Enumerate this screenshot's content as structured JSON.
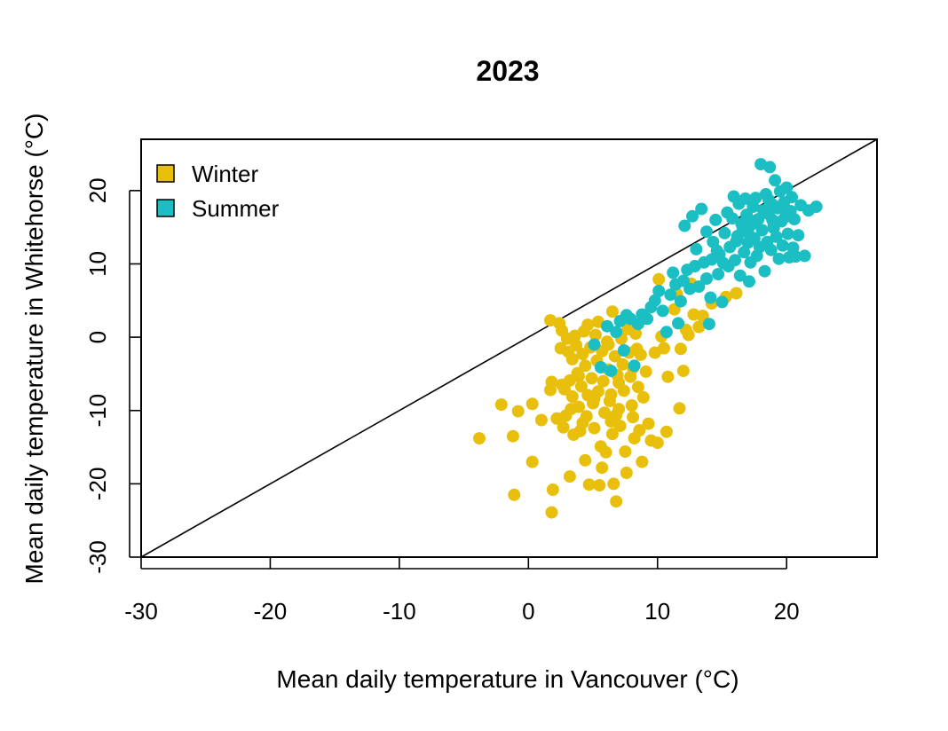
{
  "chart_data": {
    "type": "scatter",
    "title": "2023",
    "xlabel": "Mean daily temperature in Vancouver (°C)",
    "ylabel": "Mean daily temperature in Whitehorse (°C)",
    "xlim": [
      -30,
      27
    ],
    "ylim": [
      -30,
      27
    ],
    "xticks": [
      -30,
      -20,
      -10,
      0,
      10,
      20
    ],
    "yticks": [
      -30,
      -20,
      -10,
      0,
      10,
      20
    ],
    "grid": false,
    "legend_position": "top-left",
    "reference_line": {
      "type": "identity",
      "color": "#000000"
    },
    "series": [
      {
        "name": "Winter",
        "color": "#E8BF0A",
        "points": [
          [
            -3.8,
            -13.8
          ],
          [
            -2.1,
            -9.2
          ],
          [
            -1.2,
            -13.5
          ],
          [
            -1.1,
            -21.5
          ],
          [
            -0.8,
            -10.1
          ],
          [
            0.3,
            -9.1
          ],
          [
            0.3,
            -17.0
          ],
          [
            1.0,
            -11.3
          ],
          [
            1.7,
            2.3
          ],
          [
            1.8,
            -23.9
          ],
          [
            1.9,
            -20.8
          ],
          [
            1.8,
            -6.1
          ],
          [
            1.7,
            -7.2
          ],
          [
            2.2,
            -11.1
          ],
          [
            2.4,
            1.9
          ],
          [
            2.5,
            -1.5
          ],
          [
            2.6,
            -6.5
          ],
          [
            2.7,
            -12.3
          ],
          [
            2.8,
            -7.1
          ],
          [
            2.9,
            -10.7
          ],
          [
            3.0,
            -0.2
          ],
          [
            3.1,
            -2.0
          ],
          [
            3.2,
            -5.9
          ],
          [
            3.2,
            -19.0
          ],
          [
            3.4,
            -3.0
          ],
          [
            3.4,
            -8.1
          ],
          [
            3.5,
            -13.3
          ],
          [
            3.6,
            0.2
          ],
          [
            3.7,
            -1.1
          ],
          [
            3.8,
            -4.9
          ],
          [
            3.9,
            -9.5
          ],
          [
            4.0,
            -12.8
          ],
          [
            4.1,
            -6.7
          ],
          [
            4.2,
            -2.3
          ],
          [
            4.3,
            0.8
          ],
          [
            4.4,
            -3.9
          ],
          [
            4.5,
            -10.8
          ],
          [
            4.6,
            -7.9
          ],
          [
            4.6,
            1.7
          ],
          [
            4.7,
            -20.1
          ],
          [
            4.8,
            -1.4
          ],
          [
            4.9,
            -5.6
          ],
          [
            5.0,
            -9.0
          ],
          [
            5.1,
            -12.4
          ],
          [
            5.2,
            0.3
          ],
          [
            5.3,
            -3.2
          ],
          [
            5.4,
            -7.4
          ],
          [
            5.5,
            -20.2
          ],
          [
            5.6,
            -14.9
          ],
          [
            5.7,
            -1.9
          ],
          [
            5.8,
            -6.0
          ],
          [
            5.9,
            -10.3
          ],
          [
            6.0,
            -15.7
          ],
          [
            6.1,
            -0.6
          ],
          [
            6.2,
            -4.4
          ],
          [
            6.3,
            -8.7
          ],
          [
            6.4,
            -11.5
          ],
          [
            6.5,
            -13.2
          ],
          [
            6.5,
            3.5
          ],
          [
            6.6,
            -20.0
          ],
          [
            6.7,
            -2.6
          ],
          [
            6.8,
            -22.4
          ],
          [
            6.9,
            -5.2
          ],
          [
            7.0,
            -9.8
          ],
          [
            7.1,
            -12.1
          ],
          [
            7.2,
            -0.2
          ],
          [
            7.3,
            -3.7
          ],
          [
            7.4,
            -7.3
          ],
          [
            7.5,
            -15.6
          ],
          [
            7.6,
            -18.5
          ],
          [
            7.7,
            1.1
          ],
          [
            7.8,
            -2.1
          ],
          [
            7.9,
            -5.4
          ],
          [
            8.0,
            -9.3
          ],
          [
            8.1,
            -10.9
          ],
          [
            8.2,
            -13.8
          ],
          [
            8.3,
            0.5
          ],
          [
            8.4,
            -1.6
          ],
          [
            8.5,
            -6.8
          ],
          [
            8.6,
            -12.7
          ],
          [
            8.7,
            -2.4
          ],
          [
            8.8,
            -17.0
          ],
          [
            8.9,
            -8.2
          ],
          [
            9.1,
            -4.7
          ],
          [
            9.3,
            -11.8
          ],
          [
            9.5,
            -14.1
          ],
          [
            9.8,
            -2.1
          ],
          [
            10.0,
            -14.4
          ],
          [
            10.1,
            7.9
          ],
          [
            10.3,
            0.1
          ],
          [
            10.5,
            -1.5
          ],
          [
            10.7,
            -12.9
          ],
          [
            10.8,
            -5.4
          ],
          [
            11.3,
            3.8
          ],
          [
            11.5,
            5.9
          ],
          [
            11.7,
            -9.7
          ],
          [
            11.8,
            -1.6
          ],
          [
            12.0,
            -4.6
          ],
          [
            12.2,
            1.0
          ],
          [
            12.4,
            0.3
          ],
          [
            12.6,
            7.3
          ],
          [
            12.8,
            3.1
          ],
          [
            13.2,
            1.4
          ],
          [
            13.5,
            2.9
          ],
          [
            14.2,
            4.6
          ],
          [
            15.3,
            5.5
          ],
          [
            16.1,
            6.0
          ],
          [
            6.2,
            -1.0
          ],
          [
            5.1,
            -8.4
          ],
          [
            4.4,
            -16.8
          ],
          [
            3.9,
            -5.3
          ],
          [
            7.0,
            -6.2
          ],
          [
            5.7,
            -17.8
          ],
          [
            6.8,
            -10.6
          ],
          [
            4.2,
            -11.7
          ],
          [
            2.6,
            0.9
          ],
          [
            3.3,
            -9.8
          ],
          [
            8.1,
            -4.2
          ],
          [
            5.4,
            2.1
          ],
          [
            6.4,
            -7.8
          ]
        ]
      },
      {
        "name": "Summer",
        "color": "#1BBFC3",
        "points": [
          [
            5.1,
            -1.0
          ],
          [
            5.6,
            -4.1
          ],
          [
            6.1,
            1.5
          ],
          [
            6.4,
            -4.6
          ],
          [
            6.8,
            0.7
          ],
          [
            7.1,
            2.2
          ],
          [
            7.4,
            -1.8
          ],
          [
            7.6,
            3.0
          ],
          [
            7.9,
            2.5
          ],
          [
            8.2,
            -3.9
          ],
          [
            8.5,
            1.8
          ],
          [
            8.8,
            3.1
          ],
          [
            9.2,
            2.5
          ],
          [
            9.5,
            4.1
          ],
          [
            9.8,
            5.0
          ],
          [
            10.1,
            6.3
          ],
          [
            10.4,
            3.6
          ],
          [
            10.7,
            0.7
          ],
          [
            11.0,
            5.8
          ],
          [
            11.2,
            8.8
          ],
          [
            11.4,
            7.2
          ],
          [
            11.6,
            1.9
          ],
          [
            11.8,
            4.9
          ],
          [
            12.0,
            7.7
          ],
          [
            12.1,
            15.2
          ],
          [
            12.3,
            9.2
          ],
          [
            12.5,
            6.6
          ],
          [
            12.7,
            16.5
          ],
          [
            12.9,
            9.7
          ],
          [
            13.0,
            12.0
          ],
          [
            13.2,
            6.9
          ],
          [
            13.4,
            17.5
          ],
          [
            13.6,
            10.2
          ],
          [
            13.8,
            14.4
          ],
          [
            14.0,
            1.8
          ],
          [
            14.1,
            5.4
          ],
          [
            14.2,
            10.6
          ],
          [
            14.3,
            13.0
          ],
          [
            14.5,
            16.0
          ],
          [
            14.7,
            8.6
          ],
          [
            14.8,
            11.3
          ],
          [
            15.0,
            4.8
          ],
          [
            15.2,
            14.2
          ],
          [
            15.4,
            17.0
          ],
          [
            15.5,
            9.7
          ],
          [
            15.6,
            12.3
          ],
          [
            15.8,
            16.2
          ],
          [
            15.9,
            19.2
          ],
          [
            16.0,
            10.5
          ],
          [
            16.2,
            13.8
          ],
          [
            16.3,
            18.2
          ],
          [
            16.4,
            8.4
          ],
          [
            16.6,
            14.9
          ],
          [
            16.7,
            11.6
          ],
          [
            16.8,
            18.9
          ],
          [
            16.9,
            16.7
          ],
          [
            17.0,
            12.9
          ],
          [
            17.1,
            7.6
          ],
          [
            17.2,
            10.2
          ],
          [
            17.3,
            15.4
          ],
          [
            17.4,
            17.8
          ],
          [
            17.5,
            13.5
          ],
          [
            17.6,
            19.0
          ],
          [
            17.7,
            11.1
          ],
          [
            17.8,
            16.1
          ],
          [
            17.9,
            12.3
          ],
          [
            18.0,
            23.6
          ],
          [
            18.1,
            14.6
          ],
          [
            18.2,
            17.3
          ],
          [
            18.3,
            9.0
          ],
          [
            18.4,
            19.5
          ],
          [
            18.5,
            13.0
          ],
          [
            18.6,
            16.8
          ],
          [
            18.7,
            23.2
          ],
          [
            18.8,
            11.9
          ],
          [
            18.9,
            18.1
          ],
          [
            19.0,
            15.2
          ],
          [
            19.1,
            21.4
          ],
          [
            19.2,
            13.7
          ],
          [
            19.3,
            17.6
          ],
          [
            19.4,
            10.7
          ],
          [
            19.5,
            19.9
          ],
          [
            19.6,
            15.8
          ],
          [
            19.7,
            12.5
          ],
          [
            19.8,
            18.4
          ],
          [
            19.9,
            16.4
          ],
          [
            20.0,
            20.4
          ],
          [
            20.1,
            14.1
          ],
          [
            20.2,
            10.9
          ],
          [
            20.3,
            17.2
          ],
          [
            20.4,
            19.1
          ],
          [
            20.5,
            12.2
          ],
          [
            20.6,
            16.1
          ],
          [
            20.7,
            11.0
          ],
          [
            20.9,
            13.9
          ],
          [
            21.1,
            18.0
          ],
          [
            21.4,
            11.1
          ],
          [
            21.7,
            17.3
          ],
          [
            22.3,
            17.8
          ],
          [
            16.5,
            15.5
          ],
          [
            17.0,
            14.3
          ],
          [
            18.6,
            18.8
          ],
          [
            15.1,
            10.1
          ],
          [
            16.1,
            13.1
          ],
          [
            19.0,
            14.9
          ],
          [
            17.6,
            15.9
          ],
          [
            18.9,
            16.0
          ],
          [
            19.6,
            17.9
          ],
          [
            14.6,
            11.8
          ],
          [
            13.8,
            8.0
          ]
        ]
      }
    ]
  }
}
